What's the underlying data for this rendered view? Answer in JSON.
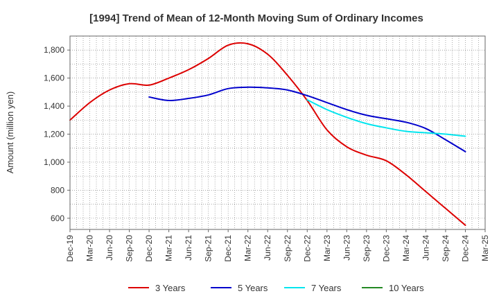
{
  "chart_data": {
    "type": "line",
    "title": "[1994]  Trend of Mean of 12-Month Moving Sum of Ordinary Incomes",
    "ylabel": "Amount (million yen)",
    "xlabel": "",
    "ylim": [
      520,
      1900
    ],
    "yticks": [
      600,
      800,
      1000,
      1200,
      1400,
      1600,
      1800
    ],
    "ytick_labels": [
      "600",
      "800",
      "1,000",
      "1,200",
      "1,400",
      "1,600",
      "1,800"
    ],
    "categories": [
      "Dec-19",
      "Mar-20",
      "Jun-20",
      "Sep-20",
      "Dec-20",
      "Mar-21",
      "Jun-21",
      "Sep-21",
      "Dec-21",
      "Mar-22",
      "Jun-22",
      "Sep-22",
      "Dec-22",
      "Mar-23",
      "Jun-23",
      "Sep-23",
      "Dec-23",
      "Mar-24",
      "Jun-24",
      "Sep-24",
      "Dec-24",
      "Mar-25"
    ],
    "grid": true,
    "legend_position": "bottom",
    "series": [
      {
        "name": "3 Years",
        "color": "#dd0000",
        "values": [
          1300,
          1425,
          1515,
          1560,
          1550,
          1600,
          1660,
          1740,
          1835,
          1845,
          1770,
          1620,
          1440,
          1230,
          1110,
          1050,
          1010,
          910,
          790,
          670,
          550,
          null
        ]
      },
      {
        "name": "5 Years",
        "color": "#0000cc",
        "values": [
          null,
          null,
          null,
          null,
          1465,
          1440,
          1455,
          1480,
          1525,
          1535,
          1530,
          1515,
          1475,
          1425,
          1375,
          1335,
          1310,
          1285,
          1240,
          1160,
          1075,
          null
        ]
      },
      {
        "name": "7 Years",
        "color": "#00e5ee",
        "values": [
          null,
          null,
          null,
          null,
          null,
          null,
          null,
          null,
          null,
          null,
          null,
          null,
          1445,
          1375,
          1320,
          1275,
          1245,
          1220,
          1210,
          1200,
          1185,
          null
        ]
      },
      {
        "name": "10 Years",
        "color": "#228822",
        "values": [
          null,
          null,
          null,
          null,
          null,
          null,
          null,
          null,
          null,
          null,
          null,
          null,
          null,
          null,
          null,
          null,
          null,
          null,
          null,
          null,
          null,
          null
        ]
      }
    ]
  }
}
